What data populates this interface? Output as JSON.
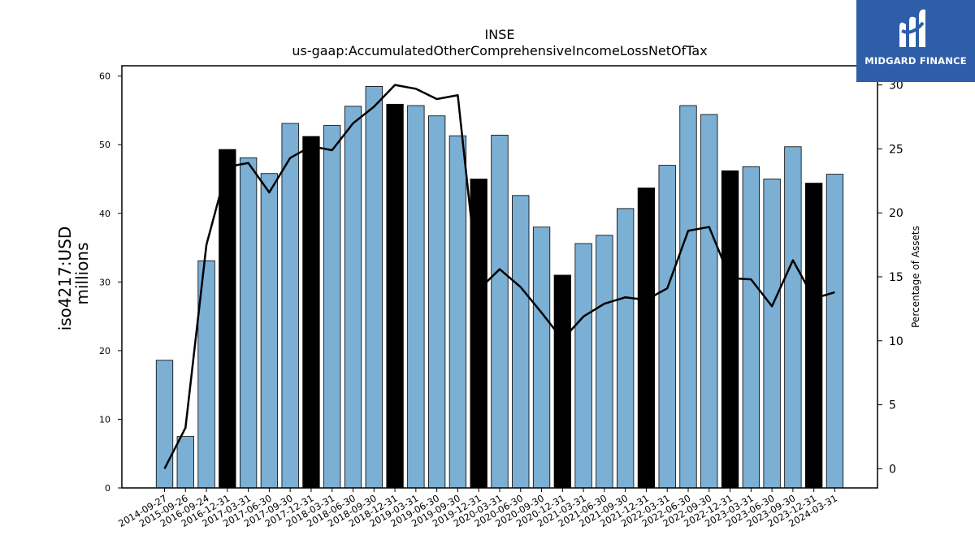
{
  "brand": {
    "name": "MIDGARD FINANCE",
    "color": "#2e5ea8",
    "icon": "midgard-logo-icon"
  },
  "chart_data": {
    "type": "bar",
    "title": "INSE",
    "subtitle": "us-gaap:AccumulatedOtherComprehensiveIncomeLossNetOfTax",
    "ylabel_line1": "iso4217:USD",
    "ylabel_line2": "millions",
    "y2label": "Percentage of Assets",
    "ylim": [
      0,
      61.5
    ],
    "y_ticks": [
      0,
      10,
      20,
      30,
      40,
      50,
      60
    ],
    "y2lim": [
      -1.5,
      31.5
    ],
    "y2_ticks": [
      0,
      5,
      10,
      15,
      20,
      25,
      30
    ],
    "colors": {
      "bar": "#7bafd4",
      "bar_highlight": "#000000",
      "line": "#000000"
    },
    "categories": [
      "2014-09-27",
      "2015-09-26",
      "2016-09-24",
      "2016-12-31",
      "2017-03-31",
      "2017-06-30",
      "2017-09-30",
      "2017-12-31",
      "2018-03-31",
      "2018-06-30",
      "2018-09-30",
      "2018-12-31",
      "2019-03-31",
      "2019-06-30",
      "2019-09-30",
      "2019-12-31",
      "2020-03-31",
      "2020-06-30",
      "2020-09-30",
      "2020-12-31",
      "2021-03-31",
      "2021-06-30",
      "2021-09-30",
      "2021-12-31",
      "2022-03-31",
      "2022-06-30",
      "2022-09-30",
      "2022-12-31",
      "2023-03-31",
      "2023-06-30",
      "2023-09-30",
      "2023-12-31",
      "2024-03-31"
    ],
    "series": [
      {
        "kind": "bar",
        "values": [
          18.6,
          7.5,
          33.1,
          49.3,
          48.1,
          45.8,
          53.1,
          51.2,
          52.8,
          55.6,
          58.5,
          55.9,
          55.7,
          54.2,
          51.3,
          45.0,
          51.4,
          42.6,
          38.0,
          31.0,
          35.6,
          36.8,
          40.7,
          43.7,
          47.0,
          55.7,
          54.4,
          46.2,
          46.8,
          45.0,
          49.7,
          44.4,
          45.7
        ],
        "highlight": [
          false,
          false,
          false,
          true,
          false,
          false,
          false,
          true,
          false,
          false,
          false,
          true,
          false,
          false,
          false,
          true,
          false,
          false,
          false,
          true,
          false,
          false,
          false,
          true,
          false,
          false,
          false,
          true,
          false,
          false,
          false,
          true,
          false
        ]
      },
      {
        "kind": "line",
        "axis": "right",
        "values": [
          0.0,
          3.2,
          17.5,
          23.6,
          23.9,
          21.6,
          24.3,
          25.2,
          24.9,
          27.0,
          28.3,
          30.0,
          29.7,
          28.9,
          29.2,
          14.0,
          15.6,
          14.2,
          12.2,
          10.1,
          11.9,
          12.9,
          13.4,
          13.2,
          14.1,
          18.6,
          18.9,
          14.9,
          14.8,
          12.7,
          16.3,
          13.3,
          13.8
        ]
      }
    ],
    "grid": false,
    "legend": "none"
  }
}
